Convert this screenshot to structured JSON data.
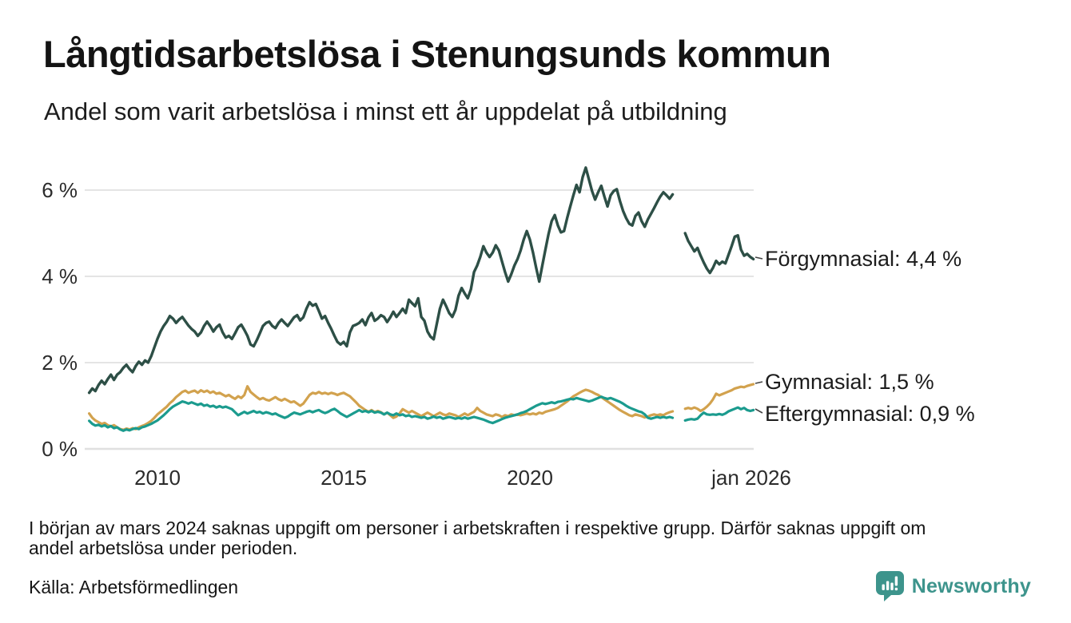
{
  "header": {
    "title": "Långtidsarbetslösa i Stenungsunds kommun",
    "subtitle": "Andel som varit arbetslösa i minst ett år uppdelat på utbildning"
  },
  "footer": {
    "note_line1": "I början av mars 2024 saknas uppgift om personer i arbetskraften i respektive grupp. Därför saknas uppgift om",
    "note_line2": "andel arbetslösa under perioden.",
    "source": "Källa: Arbetsförmedlingen",
    "brand": "Newsworthy",
    "brand_color": "#3d948c"
  },
  "chart_data": {
    "type": "line",
    "title": "Långtidsarbetslösa i Stenungsunds kommun",
    "subtitle": "Andel som varit arbetslösa i minst ett år uppdelat på utbildning",
    "unit": "%",
    "x_start": {
      "year": 2008,
      "month": 3
    },
    "x_step": "monthly",
    "x_end": {
      "year": 2026,
      "month": 1
    },
    "data_gap": {
      "from": "2023-12",
      "to": "2024-02"
    },
    "ylim": [
      0,
      6.8
    ],
    "grid": true,
    "grid_color": "#e4e4e4",
    "yticks": [
      {
        "label": "6 %",
        "value": 6
      },
      {
        "label": "4 %",
        "value": 4
      },
      {
        "label": "2 %",
        "value": 2
      },
      {
        "label": "0 %",
        "value": 0
      }
    ],
    "xticks": [
      {
        "label": "2010",
        "t": 2010
      },
      {
        "label": "2015",
        "t": 2015
      },
      {
        "label": "2020",
        "t": 2020
      },
      {
        "label": "jan 2026",
        "t": 2026
      }
    ],
    "legend_position": "right-end-labels",
    "series": [
      {
        "name": "Förgymnasial",
        "color": "#2d4f46",
        "width": 3.4,
        "end_label": "Förgymnasial: 4,4 %",
        "end_value": 4.4,
        "values": [
          1.3,
          1.4,
          1.34,
          1.48,
          1.58,
          1.5,
          1.62,
          1.72,
          1.6,
          1.72,
          1.78,
          1.88,
          1.95,
          1.85,
          1.78,
          1.92,
          2.02,
          1.95,
          2.05,
          2.0,
          2.15,
          2.35,
          2.55,
          2.72,
          2.85,
          2.95,
          3.08,
          3.02,
          2.92,
          3.0,
          3.06,
          2.96,
          2.86,
          2.78,
          2.72,
          2.62,
          2.7,
          2.85,
          2.95,
          2.85,
          2.72,
          2.82,
          2.88,
          2.7,
          2.58,
          2.62,
          2.55,
          2.68,
          2.82,
          2.88,
          2.76,
          2.62,
          2.42,
          2.38,
          2.52,
          2.68,
          2.85,
          2.92,
          2.95,
          2.85,
          2.8,
          2.92,
          3.0,
          2.92,
          2.85,
          2.95,
          3.05,
          3.1,
          2.98,
          3.05,
          3.25,
          3.4,
          3.32,
          3.36,
          3.2,
          3.02,
          3.08,
          2.92,
          2.78,
          2.62,
          2.48,
          2.42,
          2.48,
          2.38,
          2.7,
          2.85,
          2.88,
          2.92,
          3.0,
          2.87,
          3.05,
          3.15,
          2.97,
          3.02,
          3.1,
          3.06,
          2.94,
          3.05,
          3.18,
          3.06,
          3.15,
          3.25,
          3.15,
          3.46,
          3.38,
          3.31,
          3.49,
          3.06,
          2.97,
          2.72,
          2.6,
          2.54,
          2.9,
          3.25,
          3.46,
          3.31,
          3.15,
          3.06,
          3.22,
          3.55,
          3.73,
          3.6,
          3.49,
          3.7,
          4.1,
          4.25,
          4.45,
          4.7,
          4.55,
          4.45,
          4.55,
          4.72,
          4.6,
          4.35,
          4.1,
          3.88,
          4.05,
          4.25,
          4.4,
          4.6,
          4.85,
          5.05,
          4.85,
          4.55,
          4.2,
          3.88,
          4.25,
          4.62,
          4.98,
          5.28,
          5.42,
          5.18,
          5.02,
          5.05,
          5.35,
          5.62,
          5.88,
          6.12,
          5.95,
          6.3,
          6.52,
          6.25,
          5.98,
          5.78,
          5.95,
          6.1,
          5.85,
          5.62,
          5.88,
          5.98,
          6.02,
          5.75,
          5.52,
          5.35,
          5.22,
          5.18,
          5.4,
          5.48,
          5.28,
          5.15,
          5.32,
          5.45,
          5.58,
          5.72,
          5.85,
          5.95,
          5.88,
          5.8,
          5.9,
          null,
          null,
          null,
          5.0,
          4.82,
          4.7,
          4.58,
          4.66,
          4.48,
          4.32,
          4.18,
          4.08,
          4.2,
          4.36,
          4.28,
          4.34,
          4.3,
          4.5,
          4.7,
          4.92,
          4.95,
          4.62,
          4.48,
          4.52,
          4.45,
          4.4
        ]
      },
      {
        "name": "Gymnasial",
        "color": "#d2a24e",
        "width": 3.2,
        "end_label": "Gymnasial: 1,5 %",
        "end_value": 1.5,
        "values": [
          0.82,
          0.72,
          0.66,
          0.62,
          0.58,
          0.6,
          0.55,
          0.52,
          0.55,
          0.5,
          0.46,
          0.44,
          0.47,
          0.45,
          0.48,
          0.46,
          0.5,
          0.53,
          0.56,
          0.6,
          0.65,
          0.72,
          0.8,
          0.86,
          0.92,
          0.98,
          1.06,
          1.12,
          1.2,
          1.26,
          1.32,
          1.35,
          1.3,
          1.33,
          1.35,
          1.3,
          1.36,
          1.32,
          1.35,
          1.3,
          1.33,
          1.28,
          1.3,
          1.26,
          1.22,
          1.25,
          1.2,
          1.16,
          1.22,
          1.18,
          1.25,
          1.45,
          1.32,
          1.26,
          1.2,
          1.15,
          1.18,
          1.14,
          1.12,
          1.16,
          1.2,
          1.15,
          1.12,
          1.16,
          1.12,
          1.08,
          1.1,
          1.05,
          1.0,
          1.05,
          1.15,
          1.25,
          1.3,
          1.28,
          1.32,
          1.28,
          1.3,
          1.27,
          1.3,
          1.28,
          1.25,
          1.28,
          1.3,
          1.26,
          1.22,
          1.15,
          1.08,
          1.0,
          0.95,
          0.9,
          0.86,
          0.9,
          0.85,
          0.88,
          0.85,
          0.8,
          0.84,
          0.78,
          0.72,
          0.75,
          0.82,
          0.92,
          0.88,
          0.84,
          0.88,
          0.84,
          0.8,
          0.76,
          0.8,
          0.84,
          0.8,
          0.76,
          0.8,
          0.84,
          0.8,
          0.78,
          0.82,
          0.8,
          0.78,
          0.74,
          0.78,
          0.82,
          0.78,
          0.82,
          0.86,
          0.95,
          0.88,
          0.84,
          0.8,
          0.78,
          0.76,
          0.8,
          0.78,
          0.74,
          0.78,
          0.76,
          0.8,
          0.78,
          0.8,
          0.78,
          0.8,
          0.82,
          0.8,
          0.82,
          0.8,
          0.84,
          0.82,
          0.86,
          0.88,
          0.9,
          0.92,
          0.95,
          1.0,
          1.05,
          1.1,
          1.16,
          1.22,
          1.26,
          1.3,
          1.34,
          1.37,
          1.35,
          1.32,
          1.28,
          1.25,
          1.2,
          1.15,
          1.1,
          1.05,
          1.0,
          0.95,
          0.9,
          0.86,
          0.82,
          0.78,
          0.76,
          0.8,
          0.78,
          0.76,
          0.73,
          0.75,
          0.78,
          0.8,
          0.78,
          0.8,
          0.78,
          0.82,
          0.85,
          0.87,
          null,
          null,
          null,
          0.93,
          0.95,
          0.93,
          0.96,
          0.93,
          0.88,
          0.92,
          0.98,
          1.05,
          1.15,
          1.28,
          1.24,
          1.27,
          1.3,
          1.33,
          1.36,
          1.4,
          1.42,
          1.44,
          1.43,
          1.46,
          1.48,
          1.5
        ]
      },
      {
        "name": "Eftergymnasial",
        "color": "#1b9b8e",
        "width": 3.2,
        "end_label": "Eftergymnasial: 0,9 %",
        "end_value": 0.9,
        "values": [
          0.65,
          0.58,
          0.54,
          0.56,
          0.52,
          0.55,
          0.5,
          0.53,
          0.48,
          0.5,
          0.45,
          0.42,
          0.45,
          0.43,
          0.46,
          0.48,
          0.46,
          0.5,
          0.52,
          0.55,
          0.58,
          0.62,
          0.66,
          0.72,
          0.78,
          0.85,
          0.92,
          0.98,
          1.02,
          1.06,
          1.1,
          1.08,
          1.05,
          1.08,
          1.05,
          1.02,
          1.05,
          1.0,
          1.02,
          0.98,
          1.0,
          0.96,
          0.99,
          0.96,
          0.98,
          0.95,
          0.92,
          0.85,
          0.78,
          0.82,
          0.86,
          0.82,
          0.85,
          0.88,
          0.84,
          0.86,
          0.82,
          0.85,
          0.83,
          0.8,
          0.82,
          0.78,
          0.75,
          0.72,
          0.75,
          0.8,
          0.84,
          0.82,
          0.8,
          0.83,
          0.86,
          0.88,
          0.85,
          0.88,
          0.9,
          0.86,
          0.83,
          0.86,
          0.9,
          0.93,
          0.88,
          0.82,
          0.78,
          0.74,
          0.78,
          0.82,
          0.86,
          0.9,
          0.86,
          0.88,
          0.85,
          0.88,
          0.84,
          0.86,
          0.84,
          0.8,
          0.84,
          0.8,
          0.78,
          0.82,
          0.78,
          0.8,
          0.76,
          0.78,
          0.74,
          0.76,
          0.74,
          0.72,
          0.74,
          0.7,
          0.72,
          0.75,
          0.72,
          0.74,
          0.7,
          0.72,
          0.74,
          0.72,
          0.7,
          0.72,
          0.7,
          0.73,
          0.7,
          0.72,
          0.74,
          0.72,
          0.7,
          0.68,
          0.65,
          0.62,
          0.6,
          0.63,
          0.66,
          0.69,
          0.72,
          0.74,
          0.76,
          0.78,
          0.8,
          0.83,
          0.85,
          0.88,
          0.92,
          0.96,
          1.0,
          1.03,
          1.06,
          1.04,
          1.06,
          1.08,
          1.06,
          1.09,
          1.1,
          1.12,
          1.14,
          1.16,
          1.15,
          1.18,
          1.16,
          1.14,
          1.12,
          1.1,
          1.12,
          1.15,
          1.18,
          1.21,
          1.18,
          1.16,
          1.18,
          1.15,
          1.12,
          1.09,
          1.05,
          1.0,
          0.96,
          0.93,
          0.9,
          0.87,
          0.85,
          0.8,
          0.72,
          0.7,
          0.72,
          0.74,
          0.72,
          0.74,
          0.72,
          0.74,
          0.72,
          null,
          null,
          null,
          0.66,
          0.68,
          0.69,
          0.68,
          0.7,
          0.78,
          0.84,
          0.8,
          0.79,
          0.8,
          0.79,
          0.81,
          0.79,
          0.82,
          0.87,
          0.9,
          0.93,
          0.96,
          0.92,
          0.95,
          0.9,
          0.88,
          0.9
        ]
      }
    ]
  }
}
